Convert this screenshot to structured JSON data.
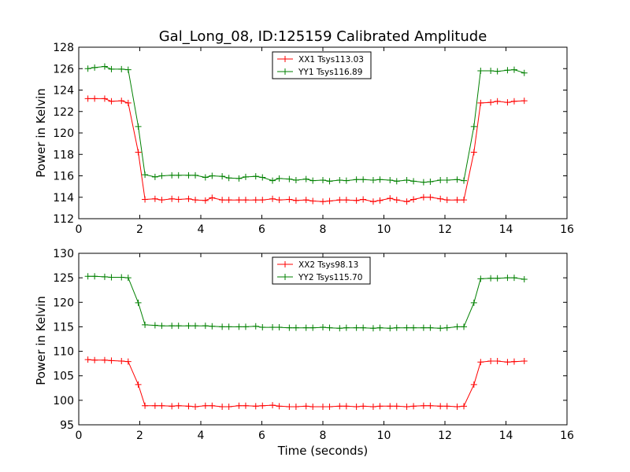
{
  "chart_data": [
    {
      "type": "line",
      "title": "Gal_Long_08, ID:125159 Calibrated Amplitude",
      "xlabel": "",
      "ylabel": "Power in Kelvin",
      "xlim": [
        0,
        16
      ],
      "ylim": [
        112,
        128
      ],
      "xticks": [
        0,
        2,
        4,
        6,
        8,
        10,
        12,
        14,
        16
      ],
      "yticks": [
        112,
        114,
        116,
        118,
        120,
        122,
        124,
        126,
        128
      ],
      "grid": false,
      "legend_position": "top-center",
      "x": [
        0.3,
        0.52,
        0.85,
        1.07,
        1.4,
        1.62,
        1.95,
        2.17,
        2.5,
        2.72,
        3.05,
        3.27,
        3.6,
        3.82,
        4.15,
        4.37,
        4.7,
        4.92,
        5.25,
        5.47,
        5.8,
        6.02,
        6.35,
        6.57,
        6.9,
        7.12,
        7.45,
        7.67,
        8.0,
        8.22,
        8.55,
        8.77,
        9.1,
        9.32,
        9.65,
        9.87,
        10.2,
        10.42,
        10.75,
        10.97,
        11.3,
        11.52,
        11.85,
        12.07,
        12.4,
        12.62,
        12.95,
        13.17,
        13.5,
        13.72,
        14.05,
        14.27,
        14.6
      ],
      "series": [
        {
          "name": "XX1 Tsys113.03",
          "color": "#ff0000",
          "values": [
            123.2,
            123.2,
            123.2,
            122.95,
            123.0,
            122.8,
            118.2,
            113.8,
            113.85,
            113.75,
            113.85,
            113.8,
            113.85,
            113.75,
            113.7,
            113.95,
            113.75,
            113.75,
            113.75,
            113.75,
            113.75,
            113.75,
            113.85,
            113.75,
            113.8,
            113.7,
            113.75,
            113.65,
            113.6,
            113.65,
            113.75,
            113.75,
            113.7,
            113.8,
            113.6,
            113.7,
            113.9,
            113.75,
            113.6,
            113.8,
            114.0,
            114.0,
            113.85,
            113.75,
            113.75,
            113.75,
            118.2,
            122.8,
            122.85,
            122.95,
            122.85,
            122.95,
            123.0
          ]
        },
        {
          "name": "YY1 Tsys116.89",
          "color": "#008000",
          "values": [
            126.0,
            126.1,
            126.2,
            125.95,
            125.95,
            125.9,
            120.6,
            116.1,
            115.9,
            116.0,
            116.05,
            116.05,
            116.05,
            116.05,
            115.85,
            116.0,
            115.95,
            115.8,
            115.75,
            115.9,
            115.95,
            115.85,
            115.55,
            115.75,
            115.7,
            115.6,
            115.7,
            115.55,
            115.6,
            115.5,
            115.6,
            115.55,
            115.65,
            115.65,
            115.6,
            115.65,
            115.6,
            115.5,
            115.6,
            115.5,
            115.4,
            115.45,
            115.6,
            115.6,
            115.65,
            115.55,
            120.6,
            125.8,
            125.8,
            125.75,
            125.85,
            125.9,
            125.6
          ]
        }
      ]
    },
    {
      "type": "line",
      "title": "",
      "xlabel": "Time (seconds)",
      "ylabel": "Power in Kelvin",
      "xlim": [
        0,
        16
      ],
      "ylim": [
        95,
        130
      ],
      "xticks": [
        0,
        2,
        4,
        6,
        8,
        10,
        12,
        14,
        16
      ],
      "yticks": [
        95,
        100,
        105,
        110,
        115,
        120,
        125,
        130
      ],
      "grid": false,
      "legend_position": "top-center",
      "x": [
        0.3,
        0.52,
        0.85,
        1.07,
        1.4,
        1.62,
        1.95,
        2.17,
        2.5,
        2.72,
        3.05,
        3.27,
        3.6,
        3.82,
        4.15,
        4.37,
        4.7,
        4.92,
        5.25,
        5.47,
        5.8,
        6.02,
        6.35,
        6.57,
        6.9,
        7.12,
        7.45,
        7.67,
        8.0,
        8.22,
        8.55,
        8.77,
        9.1,
        9.32,
        9.65,
        9.87,
        10.2,
        10.42,
        10.75,
        10.97,
        11.3,
        11.52,
        11.85,
        12.07,
        12.4,
        12.62,
        12.95,
        13.17,
        13.5,
        13.72,
        14.05,
        14.27,
        14.6
      ],
      "series": [
        {
          "name": "XX2 Tsys98.13",
          "color": "#ff0000",
          "values": [
            108.3,
            108.2,
            108.2,
            108.1,
            108.0,
            107.9,
            103.2,
            98.9,
            98.9,
            98.9,
            98.8,
            98.9,
            98.8,
            98.7,
            98.9,
            98.9,
            98.7,
            98.7,
            98.9,
            98.9,
            98.8,
            98.9,
            99.0,
            98.8,
            98.7,
            98.7,
            98.8,
            98.7,
            98.7,
            98.7,
            98.8,
            98.8,
            98.7,
            98.8,
            98.7,
            98.8,
            98.8,
            98.8,
            98.7,
            98.8,
            98.9,
            98.9,
            98.8,
            98.8,
            98.7,
            98.8,
            103.2,
            107.8,
            108.0,
            108.0,
            107.8,
            107.9,
            108.0
          ]
        },
        {
          "name": "YY2 Tsys115.70",
          "color": "#008000",
          "values": [
            125.3,
            125.3,
            125.2,
            125.1,
            125.1,
            125.0,
            119.9,
            115.4,
            115.3,
            115.2,
            115.2,
            115.2,
            115.2,
            115.2,
            115.2,
            115.1,
            115.0,
            115.0,
            115.0,
            115.0,
            115.1,
            114.9,
            114.9,
            114.9,
            114.8,
            114.8,
            114.8,
            114.8,
            114.9,
            114.8,
            114.7,
            114.8,
            114.8,
            114.8,
            114.7,
            114.8,
            114.7,
            114.8,
            114.8,
            114.8,
            114.8,
            114.8,
            114.7,
            114.8,
            115.0,
            115.0,
            119.9,
            124.8,
            124.9,
            124.9,
            125.0,
            125.0,
            124.7
          ]
        }
      ]
    }
  ]
}
